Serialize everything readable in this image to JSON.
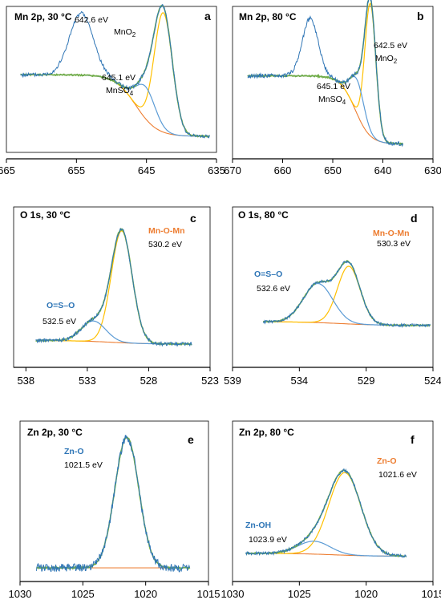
{
  "colors": {
    "raw": "#2f75b5",
    "envelope": "#70ad47",
    "main_component": "#ffc000",
    "secondary_component": "#5b9bd5",
    "background": "#ed7d31",
    "label_blue": "#2e75b6",
    "label_orange": "#ed7d31",
    "label_black": "#000000"
  },
  "chart_data": [
    {
      "id": "a",
      "type": "line",
      "title": "Mn 2p, 30 °C",
      "letter": "a",
      "xlim": [
        665,
        635
      ],
      "xticks": [
        "665",
        "655",
        "645",
        "635"
      ],
      "xtick_values": [
        665,
        655,
        645,
        635
      ],
      "x_range_data": [
        663,
        636
      ],
      "background": {
        "left": 0.53,
        "right": 0.05,
        "center": 646.5,
        "width": 1.5
      },
      "components": [
        {
          "name": "MnO2",
          "role": "main",
          "center": 642.6,
          "height": 0.93,
          "sigma": 1.3
        },
        {
          "name": "MnSO4",
          "role": "secondary",
          "center": 645.1,
          "height": 0.25,
          "sigma": 1.4
        },
        {
          "name": "satellite",
          "role": "raw_only",
          "center": 654.3,
          "height": 0.48,
          "sigma": 1.7
        }
      ],
      "annotations": [
        {
          "text": "642.6 eV",
          "color": "label_black",
          "bold": false
        },
        {
          "text": "MnO",
          "sub": "2",
          "color": "label_black",
          "bold": false
        },
        {
          "text": "645.1 eV",
          "color": "label_black",
          "bold": false
        },
        {
          "text": "MnSO",
          "sub": "4",
          "color": "label_black",
          "bold": false
        }
      ]
    },
    {
      "id": "b",
      "type": "line",
      "title": "Mn 2p, 80 °C",
      "letter": "b",
      "xlim": [
        670,
        630
      ],
      "xticks": [
        "670",
        "660",
        "650",
        "640",
        "630"
      ],
      "xtick_values": [
        670,
        660,
        650,
        640,
        630
      ],
      "x_range_data": [
        667,
        636
      ],
      "background": {
        "left": 0.55,
        "right": 0.05,
        "center": 645.5,
        "width": 1.5
      },
      "components": [
        {
          "name": "MnO2",
          "role": "main",
          "center": 642.5,
          "height": 0.97,
          "sigma": 1.1
        },
        {
          "name": "MnSO4",
          "role": "secondary",
          "center": 645.1,
          "height": 0.25,
          "sigma": 1.4
        },
        {
          "name": "satellite",
          "role": "raw_only",
          "center": 654.5,
          "height": 0.42,
          "sigma": 1.6
        }
      ],
      "annotations": [
        {
          "text": "642.5 eV",
          "color": "label_black",
          "bold": false
        },
        {
          "text": "MnO",
          "sub": "2",
          "color": "label_black",
          "bold": false
        },
        {
          "text": "645.1 eV",
          "color": "label_black",
          "bold": false
        },
        {
          "text": "MnSO",
          "sub": "4",
          "color": "label_black",
          "bold": false
        }
      ]
    },
    {
      "id": "c",
      "type": "line",
      "title": "O 1s, 30 °C",
      "letter": "c",
      "xlim": [
        539,
        523
      ],
      "xticks": [
        "538",
        "533",
        "528",
        "523"
      ],
      "xtick_values": [
        538,
        533,
        528,
        523
      ],
      "x_range_data": [
        537.2,
        524.5
      ],
      "background": {
        "left": 0.05,
        "right": 0.02,
        "center": 531.0,
        "width": 1.5
      },
      "components": [
        {
          "name": "Mn-O-Mn",
          "role": "main",
          "center": 530.2,
          "height": 0.93,
          "sigma": 0.85
        },
        {
          "name": "O=S-O",
          "role": "secondary",
          "center": 532.5,
          "height": 0.17,
          "sigma": 1.0
        }
      ],
      "annotations": [
        {
          "text": "Mn-O-Mn",
          "color": "label_orange",
          "bold": true
        },
        {
          "text": "530.2 eV",
          "color": "label_black",
          "bold": false
        },
        {
          "text": "O=S–O",
          "color": "label_blue",
          "bold": true
        },
        {
          "text": "532.5 eV",
          "color": "label_black",
          "bold": false
        }
      ]
    },
    {
      "id": "d",
      "type": "line",
      "title": "O 1s, 80 °C",
      "letter": "d",
      "xlim": [
        539,
        524
      ],
      "xticks": [
        "539",
        "534",
        "529",
        "524"
      ],
      "xtick_values": [
        539,
        534,
        529,
        524
      ],
      "x_range_data": [
        536.7,
        524.2
      ],
      "background": {
        "left": 0.06,
        "right": 0.02,
        "center": 531.0,
        "width": 1.5
      },
      "components": [
        {
          "name": "Mn-O-Mn",
          "role": "main",
          "center": 530.3,
          "height": 0.62,
          "sigma": 0.85
        },
        {
          "name": "O=S-O",
          "role": "secondary",
          "center": 532.6,
          "height": 0.42,
          "sigma": 1.1
        }
      ],
      "annotations": [
        {
          "text": "Mn-O-Mn",
          "color": "label_orange",
          "bold": true
        },
        {
          "text": "530.3 eV",
          "color": "label_black",
          "bold": false
        },
        {
          "text": "O=S–O",
          "color": "label_blue",
          "bold": true
        },
        {
          "text": "532.6 eV",
          "color": "label_black",
          "bold": false
        }
      ]
    },
    {
      "id": "e",
      "type": "line",
      "title": "Zn 2p, 30 °C",
      "letter": "e",
      "xlim": [
        1030,
        1015
      ],
      "xticks": [
        "1030",
        "1025",
        "1020",
        "1015"
      ],
      "xtick_values": [
        1030,
        1025,
        1020,
        1015
      ],
      "x_range_data": [
        1028.7,
        1016.5
      ],
      "background": {
        "left": 0.03,
        "right": 0.03,
        "center": 1021.5,
        "width": 1.0
      },
      "components": [
        {
          "name": "Zn-O",
          "role": "secondary",
          "center": 1021.5,
          "height": 0.97,
          "sigma": 0.95
        }
      ],
      "annotations": [
        {
          "text": "Zn-O",
          "color": "label_blue",
          "bold": true
        },
        {
          "text": "1021.5 eV",
          "color": "label_black",
          "bold": false
        }
      ]
    },
    {
      "id": "f",
      "type": "line",
      "title": "Zn 2p, 80 °C",
      "letter": "f",
      "xlim": [
        1030,
        1015
      ],
      "xticks": [
        "1030",
        "1025",
        "1020",
        "1015"
      ],
      "xtick_values": [
        1030,
        1025,
        1020,
        1015
      ],
      "x_range_data": [
        1029,
        1017
      ],
      "background": {
        "left": 0.05,
        "right": 0.02,
        "center": 1022.5,
        "width": 1.5
      },
      "components": [
        {
          "name": "Zn-O",
          "role": "main",
          "center": 1021.6,
          "height": 0.83,
          "sigma": 1.2
        },
        {
          "name": "Zn-OH",
          "role": "secondary",
          "center": 1023.9,
          "height": 0.13,
          "sigma": 1.2
        }
      ],
      "annotations": [
        {
          "text": "Zn-O",
          "color": "label_orange",
          "bold": true
        },
        {
          "text": "1021.6 eV",
          "color": "label_black",
          "bold": false
        },
        {
          "text": "Zn-OH",
          "color": "label_blue",
          "bold": true
        },
        {
          "text": "1023.9  eV",
          "color": "label_black",
          "bold": false
        }
      ]
    }
  ]
}
